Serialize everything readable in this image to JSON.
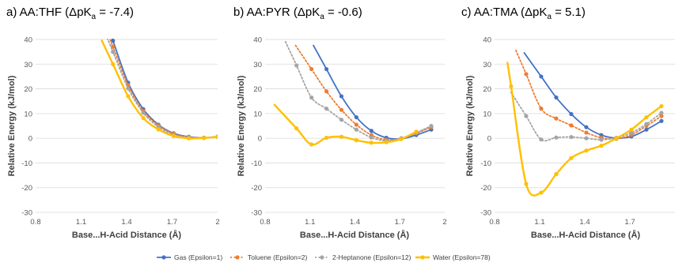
{
  "series_styles": [
    {
      "name": "Gas (Epsilon=1)",
      "color": "#4472c4",
      "dash": "",
      "width": 1.8
    },
    {
      "name": "Toluene (Epsilon=2)",
      "color": "#ed7d31",
      "dash": "2,2.5",
      "width": 1.8
    },
    {
      "name": "2-Heptanone (Epsilon=12)",
      "color": "#a5a5a5",
      "dash": "2,2.5",
      "width": 1.8
    },
    {
      "name": "Water (Epsilon=78)",
      "color": "#ffc000",
      "dash": "",
      "width": 2.4
    }
  ],
  "chart_data": [
    {
      "type": "scatter",
      "title": "a) AA:THF (ΔpKa = -7.4)",
      "title_parts": {
        "prefix": "a) AA:THF (ΔpK",
        "sub": "a",
        "suffix": " = -7.4)"
      },
      "xlabel": "Base...H-Acid Distance (Å)",
      "ylabel": "Relative Energy (kJ/mol)",
      "xlim": [
        0.8,
        2.0
      ],
      "ylim": [
        -30,
        40
      ],
      "xticks": [
        0.8,
        1.1,
        1.4,
        1.7,
        2.0
      ],
      "xtick_labels": [
        "0.8",
        "1.1",
        "1.4",
        "1.7",
        "2"
      ],
      "yticks": [
        -30,
        -20,
        -10,
        0,
        10,
        20,
        30,
        40
      ],
      "ytick_labels": [
        "-30",
        "-20",
        "-10",
        "0",
        "10",
        "20",
        "30",
        "40"
      ],
      "grid": true,
      "series": [
        {
          "name": "Gas (Epsilon=1)",
          "x": [
            1.31,
            1.41,
            1.51,
            1.61,
            1.71,
            1.81,
            1.91,
            2.0
          ],
          "y": [
            39.5,
            22.5,
            11.8,
            5.5,
            2.0,
            0.6,
            0.2,
            0.7
          ]
        },
        {
          "name": "Toluene (Epsilon=2)",
          "x": [
            1.31,
            1.41,
            1.51,
            1.61,
            1.71,
            1.81,
            1.91,
            2.0
          ],
          "y": [
            37.0,
            21.5,
            11.0,
            5.2,
            1.8,
            0.5,
            0.2,
            0.6
          ]
        },
        {
          "name": "2-Heptanone (Epsilon=12)",
          "x": [
            1.31,
            1.41,
            1.51,
            1.61,
            1.71,
            1.81,
            1.91,
            2.0
          ],
          "y": [
            35.0,
            20.2,
            10.3,
            4.6,
            1.4,
            0.3,
            0.1,
            0.5
          ]
        },
        {
          "name": "Water (Epsilon=78)",
          "x": [
            1.31,
            1.41,
            1.51,
            1.61,
            1.71,
            1.81,
            1.91,
            2.0
          ],
          "y": [
            30.0,
            17.0,
            8.2,
            3.6,
            0.9,
            0.0,
            0.1,
            0.6
          ]
        }
      ]
    },
    {
      "type": "scatter",
      "title": "b) AA:PYR (ΔpKa = -0.6)",
      "title_parts": {
        "prefix": "b) AA:PYR (ΔpK",
        "sub": "a",
        "suffix": " = -0.6)"
      },
      "xlabel": "Base...H-Acid Distance (Å)",
      "ylabel": "Relative Energy (kJ/mol)",
      "xlim": [
        0.8,
        2.0
      ],
      "ylim": [
        -30,
        40
      ],
      "xticks": [
        0.8,
        1.1,
        1.4,
        1.7,
        2.0
      ],
      "xtick_labels": [
        "0.8",
        "1.1",
        "1.4",
        "1.7",
        "2"
      ],
      "yticks": [
        -30,
        -20,
        -10,
        0,
        10,
        20,
        30,
        40
      ],
      "ytick_labels": [
        "-30",
        "-20",
        "-10",
        "0",
        "10",
        "20",
        "30",
        "40"
      ],
      "grid": true,
      "series": [
        {
          "name": "Gas (Epsilon=1)",
          "x": [
            1.21,
            1.31,
            1.41,
            1.51,
            1.61,
            1.71,
            1.81,
            1.91
          ],
          "y": [
            28.0,
            17.0,
            8.5,
            3.0,
            0.2,
            -0.2,
            1.3,
            3.5
          ]
        },
        {
          "name": "Toluene (Epsilon=2)",
          "x": [
            1.11,
            1.21,
            1.31,
            1.41,
            1.51,
            1.61,
            1.71,
            1.81,
            1.91
          ],
          "y": [
            28.0,
            19.0,
            11.5,
            5.5,
            1.3,
            -0.6,
            0.0,
            2.0,
            4.5
          ]
        },
        {
          "name": "2-Heptanone (Epsilon=12)",
          "x": [
            1.01,
            1.11,
            1.21,
            1.31,
            1.41,
            1.51,
            1.61,
            1.71,
            1.81,
            1.91
          ],
          "y": [
            29.5,
            16.5,
            12.0,
            7.5,
            3.5,
            0.3,
            -1.0,
            0.0,
            2.3,
            5.0
          ]
        },
        {
          "name": "Water (Epsilon=78)",
          "x": [
            1.01,
            1.11,
            1.21,
            1.31,
            1.41,
            1.51,
            1.61,
            1.71,
            1.81
          ],
          "y": [
            4.0,
            -2.5,
            0.2,
            0.6,
            -0.8,
            -1.8,
            -1.6,
            -0.3,
            2.7
          ]
        }
      ]
    },
    {
      "type": "scatter",
      "title": "c) AA:TMA (ΔpKa = 5.1)",
      "title_parts": {
        "prefix": "c) AA:TMA (ΔpK",
        "sub": "a",
        "suffix": " = 5.1)"
      },
      "xlabel": "Base...H-Acid Distance (Å)",
      "ylabel": "Relative Energy (kJ/mol)",
      "xlim": [
        0.8,
        2.0
      ],
      "ylim": [
        -30,
        40
      ],
      "xticks": [
        0.8,
        1.1,
        1.4,
        1.7
      ],
      "xtick_labels": [
        "0.8",
        "1.1",
        "1.4",
        "1.7"
      ],
      "yticks": [
        -30,
        -20,
        -10,
        0,
        10,
        20,
        30,
        40
      ],
      "ytick_labels": [
        "-30",
        "-20",
        "-10",
        "0",
        "10",
        "20",
        "30",
        "40"
      ],
      "grid": true,
      "series": [
        {
          "name": "Gas (Epsilon=1)",
          "x": [
            1.11,
            1.21,
            1.31,
            1.41,
            1.51,
            1.61,
            1.71,
            1.81,
            1.91
          ],
          "y": [
            25.0,
            16.5,
            9.8,
            4.5,
            1.3,
            0.1,
            0.7,
            3.5,
            7.0
          ]
        },
        {
          "name": "Toluene (Epsilon=2)",
          "x": [
            1.01,
            1.11,
            1.21,
            1.31,
            1.41,
            1.51,
            1.61,
            1.71,
            1.81,
            1.91
          ],
          "y": [
            26.0,
            12.0,
            8.0,
            5.2,
            2.3,
            0.2,
            -0.2,
            1.4,
            5.0,
            9.0
          ]
        },
        {
          "name": "2-Heptanone (Epsilon=12)",
          "x": [
            1.01,
            1.11,
            1.21,
            1.31,
            1.41,
            1.51,
            1.61,
            1.71,
            1.81,
            1.91
          ],
          "y": [
            9.0,
            -0.5,
            0.3,
            0.5,
            0.0,
            -0.6,
            0.2,
            2.2,
            5.8,
            10.3
          ]
        },
        {
          "name": "Water (Epsilon=78)",
          "x": [
            0.91,
            1.01,
            1.11,
            1.21,
            1.31,
            1.41,
            1.51,
            1.61,
            1.71,
            1.81,
            1.91
          ],
          "y": [
            21.0,
            -18.5,
            -22.0,
            -14.5,
            -8.0,
            -5.0,
            -3.0,
            0.0,
            3.5,
            8.5,
            13.0
          ]
        }
      ]
    }
  ]
}
